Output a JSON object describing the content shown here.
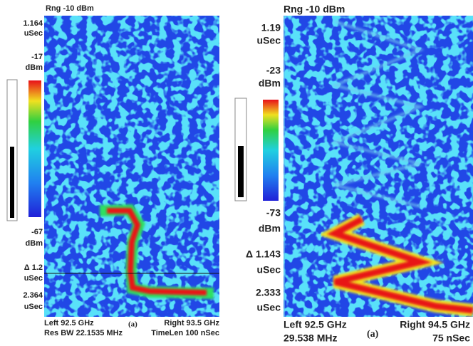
{
  "panels": [
    {
      "title": "Rng -10 dBm",
      "axis_labels": [
        "1.164",
        "uSec",
        "-17",
        "dBm",
        "-67",
        "dBm",
        "Δ 1.2",
        "uSec",
        "2.364",
        "uSec"
      ],
      "footer_left": [
        "Left 92.5 GHz",
        "Res BW 22.1535 MHz"
      ],
      "footer_center": "(a)",
      "footer_right": [
        "Right 93.5 GHz",
        "TimeLen 100 nSec"
      ]
    },
    {
      "title": "Rng -10 dBm",
      "axis_labels": [
        "1.19",
        "uSec",
        "-23",
        "dBm",
        "-73",
        "dBm",
        "Δ 1.143",
        "uSec",
        "2.333",
        "uSec"
      ],
      "footer_left": [
        "Left 92.5 GHz",
        "29.538 MHz"
      ],
      "footer_center": "(a)",
      "footer_right": [
        "Right 94.5 GHz",
        "75 nSec"
      ]
    }
  ]
}
